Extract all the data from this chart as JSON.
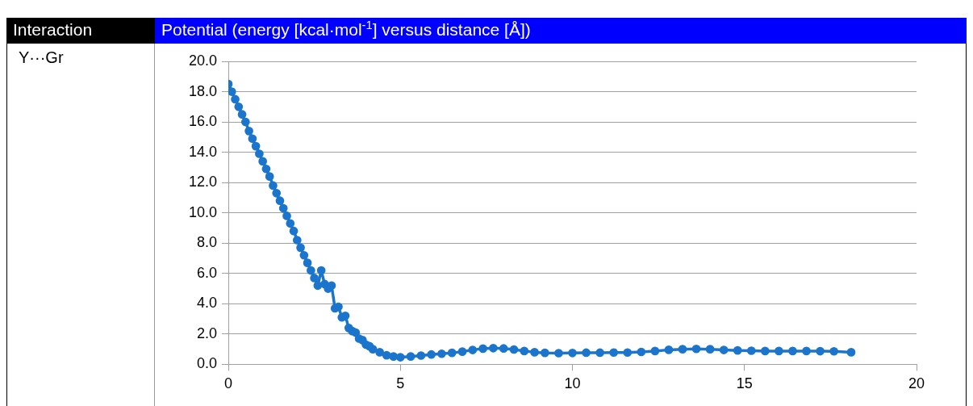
{
  "chart_data": {
    "type": "line",
    "title": "Potential (energy [kcal·mol$^{-1}$] versus distance [Å])",
    "annotations": [
      "Interaction",
      "Y···Gr"
    ],
    "x": [
      0,
      0.1,
      0.2,
      0.3,
      0.4,
      0.5,
      0.6,
      0.7,
      0.8,
      0.9,
      1.0,
      1.1,
      1.2,
      1.3,
      1.4,
      1.5,
      1.6,
      1.7,
      1.8,
      1.9,
      2.0,
      2.1,
      2.2,
      2.3,
      2.4,
      2.5,
      2.6,
      2.7,
      2.8,
      2.9,
      3.0,
      3.1,
      3.2,
      3.3,
      3.4,
      3.5,
      3.6,
      3.7,
      3.8,
      3.9,
      4.0,
      4.1,
      4.2,
      4.4,
      4.6,
      4.8,
      5.0,
      5.3,
      5.6,
      5.9,
      6.2,
      6.5,
      6.8,
      7.1,
      7.4,
      7.7,
      8.0,
      8.3,
      8.6,
      8.9,
      9.2,
      9.6,
      10.0,
      10.4,
      10.8,
      11.2,
      11.6,
      12.0,
      12.4,
      12.8,
      13.2,
      13.6,
      14.0,
      14.4,
      14.8,
      15.2,
      15.6,
      16.0,
      16.4,
      16.8,
      17.2,
      17.6,
      18.1
    ],
    "series": [
      {
        "color": "#1b75cc",
        "values": [
          18.5,
          18.0,
          17.5,
          17.0,
          16.5,
          16.0,
          15.4,
          14.9,
          14.4,
          13.9,
          13.4,
          12.9,
          12.4,
          11.8,
          11.3,
          10.8,
          10.3,
          9.8,
          9.3,
          8.8,
          8.2,
          7.7,
          7.2,
          6.7,
          6.2,
          5.7,
          5.2,
          6.2,
          5.3,
          5.0,
          5.2,
          3.7,
          3.8,
          3.1,
          3.2,
          2.4,
          2.2,
          2.1,
          1.7,
          1.6,
          1.3,
          1.2,
          1.0,
          0.8,
          0.6,
          0.52,
          0.47,
          0.52,
          0.58,
          0.65,
          0.7,
          0.76,
          0.84,
          0.95,
          1.04,
          1.07,
          1.05,
          0.98,
          0.88,
          0.8,
          0.76,
          0.74,
          0.75,
          0.77,
          0.77,
          0.78,
          0.78,
          0.82,
          0.88,
          0.96,
          1.0,
          1.02,
          1.0,
          0.95,
          0.92,
          0.9,
          0.88,
          0.88,
          0.88,
          0.88,
          0.87,
          0.86,
          0.8
        ]
      }
    ],
    "xlim": [
      0,
      20
    ],
    "xticks": [
      0,
      5,
      10,
      15,
      20
    ],
    "ylim": [
      0,
      20
    ],
    "yticks": [
      {
        "value": 0,
        "label": "0.0"
      },
      {
        "value": 2,
        "label": "2.0"
      },
      {
        "value": 4,
        "label": "4.0"
      },
      {
        "value": 6,
        "label": "6.0"
      },
      {
        "value": 8,
        "label": "8.0"
      },
      {
        "value": 10,
        "label": "10.0"
      },
      {
        "value": 12,
        "label": "12.0"
      },
      {
        "value": 14,
        "label": "14.0"
      },
      {
        "value": 16,
        "label": "16.0"
      },
      {
        "value": 18,
        "label": "18.0"
      },
      {
        "value": 20,
        "label": "20.0"
      }
    ],
    "grid": "y",
    "legend": false,
    "marker": "circle",
    "line_style": "solid"
  }
}
